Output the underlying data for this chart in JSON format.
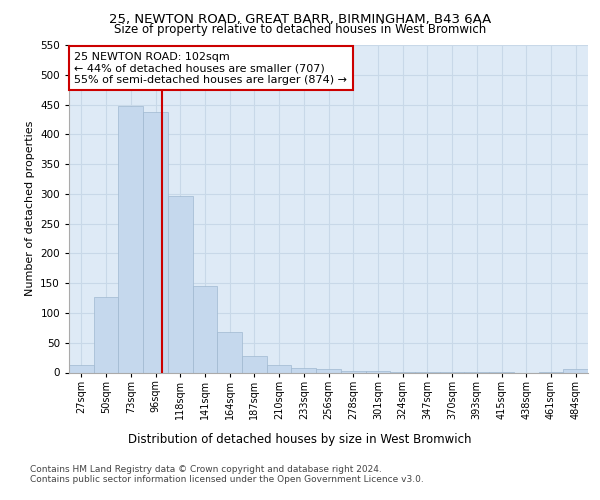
{
  "title1": "25, NEWTON ROAD, GREAT BARR, BIRMINGHAM, B43 6AA",
  "title2": "Size of property relative to detached houses in West Bromwich",
  "xlabel": "Distribution of detached houses by size in West Bromwich",
  "ylabel": "Number of detached properties",
  "bar_labels": [
    "27sqm",
    "50sqm",
    "73sqm",
    "96sqm",
    "118sqm",
    "141sqm",
    "164sqm",
    "187sqm",
    "210sqm",
    "233sqm",
    "256sqm",
    "278sqm",
    "301sqm",
    "324sqm",
    "347sqm",
    "370sqm",
    "393sqm",
    "415sqm",
    "438sqm",
    "461sqm",
    "484sqm"
  ],
  "bar_values": [
    12,
    127,
    447,
    437,
    296,
    146,
    68,
    27,
    13,
    8,
    6,
    2,
    2,
    1,
    1,
    1,
    1,
    1,
    0,
    1,
    6
  ],
  "bar_color": "#c5d8ed",
  "bar_edge_color": "#a0b8d0",
  "grid_color": "#c8d8e8",
  "background_color": "#deeaf6",
  "annotation_text": "25 NEWTON ROAD: 102sqm\n← 44% of detached houses are smaller (707)\n55% of semi-detached houses are larger (874) →",
  "annotation_box_color": "#ffffff",
  "annotation_box_edge": "#cc0000",
  "vline_color": "#cc0000",
  "ylim": [
    0,
    550
  ],
  "yticks": [
    0,
    50,
    100,
    150,
    200,
    250,
    300,
    350,
    400,
    450,
    500,
    550
  ],
  "footer1": "Contains HM Land Registry data © Crown copyright and database right 2024.",
  "footer2": "Contains public sector information licensed under the Open Government Licence v3.0."
}
